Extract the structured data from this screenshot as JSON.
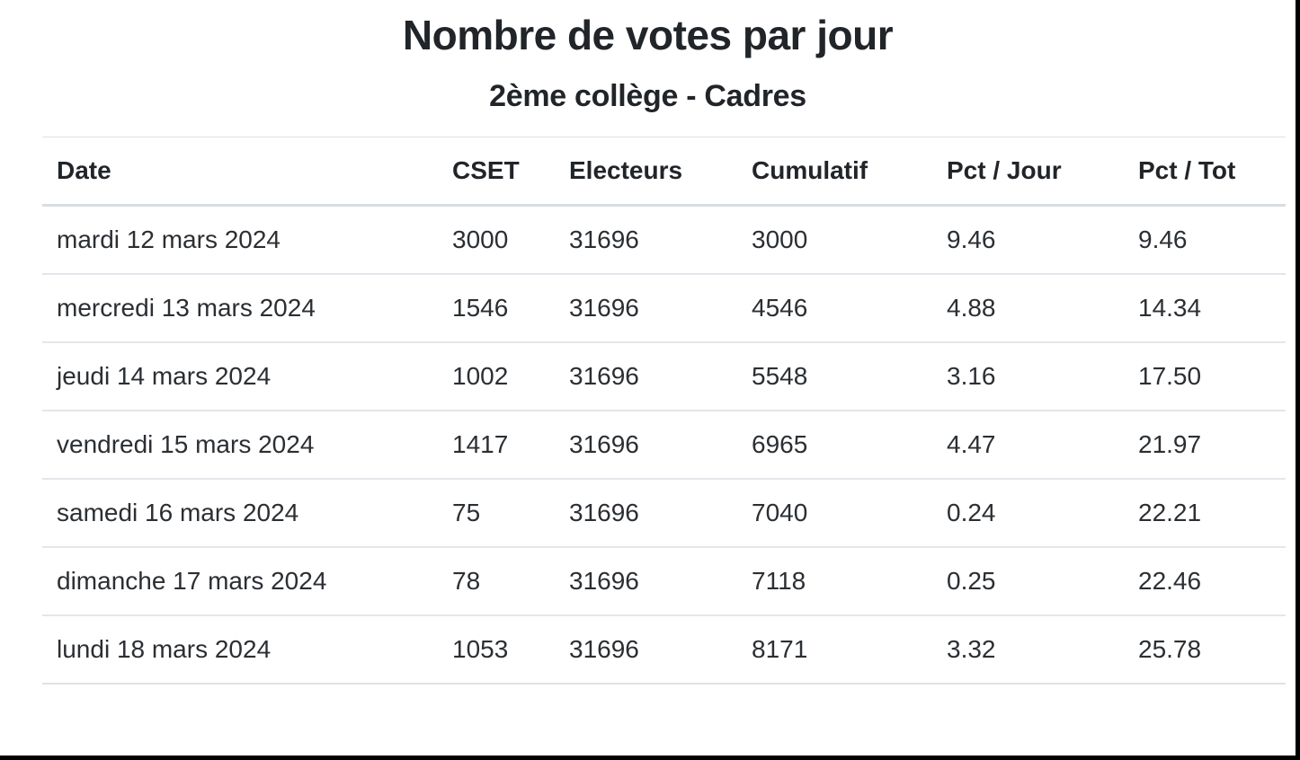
{
  "page": {
    "title": "Nombre de votes par jour",
    "subtitle": "2ème collège - Cadres"
  },
  "colors": {
    "background": "#ffffff",
    "frame": "#000000",
    "text": "#212529",
    "row_border": "#dee2e6"
  },
  "table": {
    "columns": [
      "Date",
      "CSET",
      "Electeurs",
      "Cumulatif",
      "Pct / Jour",
      "Pct / Tot"
    ],
    "rows": [
      [
        "mardi 12 mars 2024",
        "3000",
        "31696",
        "3000",
        "9.46",
        "9.46"
      ],
      [
        "mercredi 13 mars 2024",
        "1546",
        "31696",
        "4546",
        "4.88",
        "14.34"
      ],
      [
        "jeudi 14 mars 2024",
        "1002",
        "31696",
        "5548",
        "3.16",
        "17.50"
      ],
      [
        "vendredi 15 mars 2024",
        "1417",
        "31696",
        "6965",
        "4.47",
        "21.97"
      ],
      [
        "samedi 16 mars 2024",
        "75",
        "31696",
        "7040",
        "0.24",
        "22.21"
      ],
      [
        "dimanche 17 mars 2024",
        "78",
        "31696",
        "7118",
        "0.25",
        "22.46"
      ],
      [
        "lundi 18 mars 2024",
        "1053",
        "31696",
        "8171",
        "3.32",
        "25.78"
      ]
    ]
  },
  "chart_data": {
    "type": "table",
    "title": "Nombre de votes par jour",
    "subtitle": "2ème collège - Cadres",
    "columns": [
      "Date",
      "CSET",
      "Electeurs",
      "Cumulatif",
      "Pct / Jour",
      "Pct / Tot"
    ],
    "rows": [
      {
        "date": "mardi 12 mars 2024",
        "cset": 3000,
        "electeurs": 31696,
        "cumulatif": 3000,
        "pct_jour": 9.46,
        "pct_tot": 9.46
      },
      {
        "date": "mercredi 13 mars 2024",
        "cset": 1546,
        "electeurs": 31696,
        "cumulatif": 4546,
        "pct_jour": 4.88,
        "pct_tot": 14.34
      },
      {
        "date": "jeudi 14 mars 2024",
        "cset": 1002,
        "electeurs": 31696,
        "cumulatif": 5548,
        "pct_jour": 3.16,
        "pct_tot": 17.5
      },
      {
        "date": "vendredi 15 mars 2024",
        "cset": 1417,
        "electeurs": 31696,
        "cumulatif": 6965,
        "pct_jour": 4.47,
        "pct_tot": 21.97
      },
      {
        "date": "samedi 16 mars 2024",
        "cset": 75,
        "electeurs": 31696,
        "cumulatif": 7040,
        "pct_jour": 0.24,
        "pct_tot": 22.21
      },
      {
        "date": "dimanche 17 mars 2024",
        "cset": 78,
        "electeurs": 31696,
        "cumulatif": 7118,
        "pct_jour": 0.25,
        "pct_tot": 22.46
      },
      {
        "date": "lundi 18 mars 2024",
        "cset": 1053,
        "electeurs": 31696,
        "cumulatif": 8171,
        "pct_jour": 3.32,
        "pct_tot": 25.78
      }
    ]
  }
}
